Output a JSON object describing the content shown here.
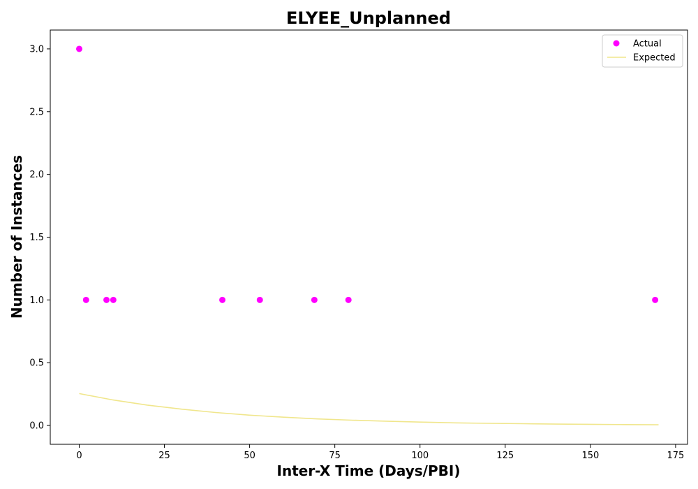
{
  "chart_data": {
    "type": "scatter",
    "title": "ELYEE_Unplanned",
    "xlabel": "Inter-X Time (Days/PBI)",
    "ylabel": "Number of Instances",
    "xlim": [
      -8.5,
      178.5
    ],
    "ylim": [
      -0.15,
      3.15
    ],
    "xticks": [
      0,
      25,
      50,
      75,
      100,
      125,
      150,
      175
    ],
    "xtick_labels": [
      "0",
      "25",
      "50",
      "75",
      "100",
      "125",
      "150",
      "175"
    ],
    "yticks": [
      0.0,
      0.5,
      1.0,
      1.5,
      2.0,
      2.5,
      3.0
    ],
    "ytick_labels": [
      "0.0",
      "0.5",
      "1.0",
      "1.5",
      "2.0",
      "2.5",
      "3.0"
    ],
    "grid": false,
    "legend_position": "top-right",
    "series": [
      {
        "name": "Actual",
        "kind": "scatter",
        "color": "#ff00ff",
        "x": [
          0,
          2,
          8,
          10,
          42,
          53,
          69,
          79,
          169
        ],
        "y": [
          3,
          1,
          1,
          1,
          1,
          1,
          1,
          1,
          1
        ]
      },
      {
        "name": "Expected",
        "kind": "line",
        "color": "#f0e68c",
        "x": [
          0,
          10,
          20,
          30,
          40,
          50,
          60,
          70,
          80,
          90,
          100,
          110,
          120,
          130,
          140,
          150,
          160,
          170
        ],
        "y": [
          0.254,
          0.203,
          0.162,
          0.13,
          0.103,
          0.082,
          0.066,
          0.052,
          0.042,
          0.034,
          0.027,
          0.021,
          0.017,
          0.014,
          0.011,
          0.009,
          0.007,
          0.005
        ]
      }
    ]
  }
}
